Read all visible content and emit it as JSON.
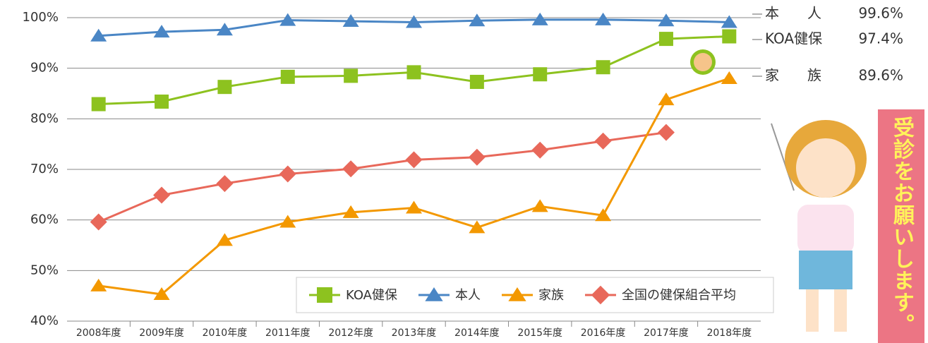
{
  "chart_data": {
    "type": "line",
    "categories": [
      "2008年度",
      "2009年度",
      "2010年度",
      "2011年度",
      "2012年度",
      "2013年度",
      "2014年度",
      "2015年度",
      "2016年度",
      "2017年度",
      "2018年度"
    ],
    "series": [
      {
        "name": "KOA健保",
        "color": "#8dc21f",
        "marker": "square",
        "values": [
          82.9,
          83.4,
          86.3,
          88.3,
          88.5,
          89.2,
          87.3,
          88.8,
          90.2,
          95.8,
          96.3
        ]
      },
      {
        "name": "本人",
        "color": "#4a86c5",
        "marker": "triangle",
        "values": [
          96.4,
          97.2,
          97.6,
          99.5,
          99.3,
          99.1,
          99.4,
          99.6,
          99.6,
          99.4,
          99.1
        ]
      },
      {
        "name": "家族",
        "color": "#f39800",
        "marker": "triangle",
        "values": [
          47.0,
          45.3,
          56.0,
          59.6,
          61.5,
          62.4,
          58.5,
          62.7,
          60.9,
          83.8,
          88.0
        ]
      },
      {
        "name": "全国の健保組合平均",
        "color": "#e8685a",
        "marker": "diamond",
        "values": [
          59.6,
          64.9,
          67.2,
          69.1,
          70.1,
          71.9,
          72.4,
          73.8,
          75.6,
          77.3,
          null
        ]
      }
    ],
    "ylim": [
      40,
      100
    ],
    "yticks": [
      {
        "value": 40,
        "label": "40%"
      },
      {
        "value": 50,
        "label": "50%"
      },
      {
        "value": 60,
        "label": "60%"
      },
      {
        "value": 70,
        "label": "70%"
      },
      {
        "value": 80,
        "label": "80%"
      },
      {
        "value": 90,
        "label": "90%"
      },
      {
        "value": 100,
        "label": "100%"
      }
    ],
    "grid": true,
    "annotations": [
      {
        "label": "本　　人",
        "value": "99.6%"
      },
      {
        "label": "KOA健保",
        "value": "97.4%"
      },
      {
        "label": "家　　族",
        "value": "89.6%"
      }
    ],
    "side_banner": "受診をお願いします。"
  }
}
